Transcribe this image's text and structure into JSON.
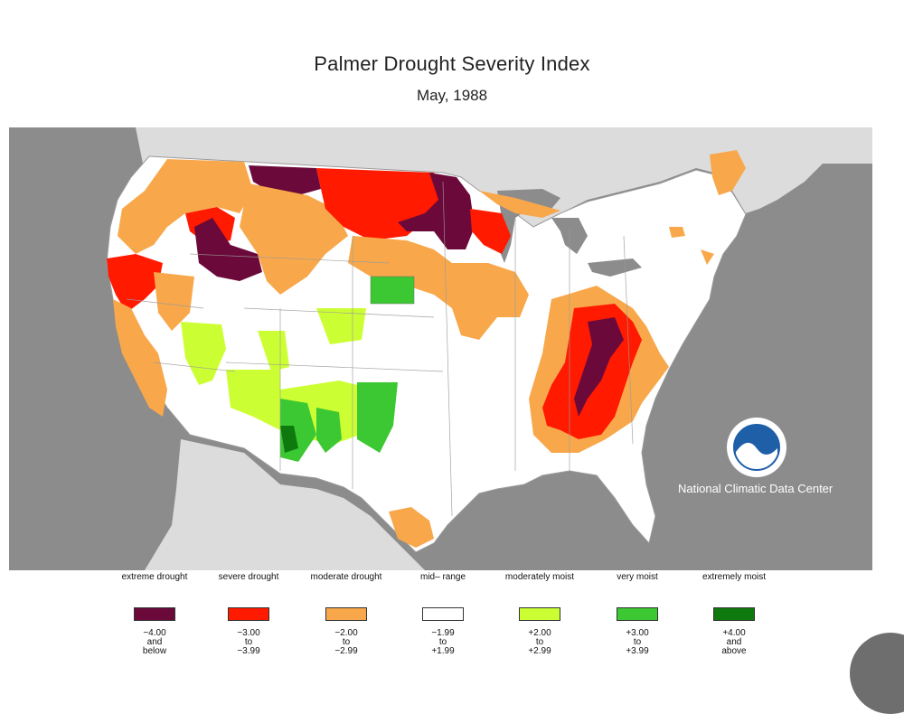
{
  "title": "Palmer Drought Severity Index",
  "subtitle": "May, 1988",
  "credit": "National Climatic Data Center",
  "logo_icon": "noaa-logo-icon",
  "colors": {
    "ocean": "#8c8c8c",
    "neighbors": "#dcdcdc",
    "us_background": "#ffffff",
    "boundaries": "#9a9a9a"
  },
  "legend": [
    {
      "label": "extreme\ndrought",
      "range": "−4.00\nand\nbelow",
      "color": "#6b0a3a"
    },
    {
      "label": "severe\ndrought",
      "range": "−3.00\nto\n−3.99",
      "color": "#ff1a00"
    },
    {
      "label": "moderate\ndrought",
      "range": "−2.00\nto\n−2.99",
      "color": "#f8a84b"
    },
    {
      "label": "mid–\nrange",
      "range": "−1.99\nto\n+1.99",
      "color": "#ffffff"
    },
    {
      "label": "moderately\nmoist",
      "range": "+2.00\nto\n+2.99",
      "color": "#ccff33"
    },
    {
      "label": "very\nmoist",
      "range": "+3.00\nto\n+3.99",
      "color": "#3cc832"
    },
    {
      "label": "extremely\nmoist",
      "range": "+4.00\nand\nabove",
      "color": "#0e7a0e"
    }
  ],
  "regions": [
    {
      "id": "nw-coast-oregon",
      "category": "severe drought"
    },
    {
      "id": "california-coast",
      "category": "moderate drought"
    },
    {
      "id": "northern-plains-montana",
      "category": "extreme drought"
    },
    {
      "id": "north-dakota",
      "category": "severe drought"
    },
    {
      "id": "minnesota-core",
      "category": "extreme drought"
    },
    {
      "id": "wisconsin",
      "category": "severe drought"
    },
    {
      "id": "idaho",
      "category": "extreme drought"
    },
    {
      "id": "nevada-utah",
      "category": "moderately moist"
    },
    {
      "id": "arizona-new-mexico",
      "category": "moderately moist"
    },
    {
      "id": "new-mexico-core",
      "category": "very moist"
    },
    {
      "id": "nebraska-spot",
      "category": "very moist"
    },
    {
      "id": "ohio-valley-tennessee",
      "category": "severe drought"
    },
    {
      "id": "tennessee-core",
      "category": "extreme drought"
    },
    {
      "id": "midwest-iowa",
      "category": "moderate drought"
    },
    {
      "id": "south-texas",
      "category": "moderate drought"
    },
    {
      "id": "maine",
      "category": "moderate drought"
    }
  ]
}
